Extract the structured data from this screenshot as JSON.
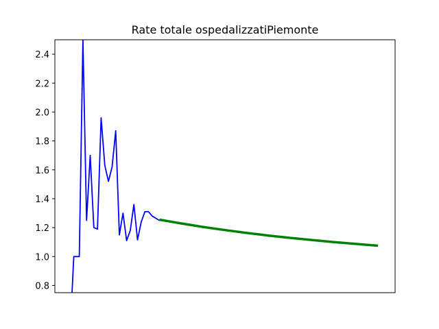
{
  "chart_data": {
    "type": "line",
    "title": "Rate totale ospedalizzatiPiemonte",
    "xlabel": "",
    "ylabel": "",
    "ylim": [
      0.75,
      2.5
    ],
    "yticks": [
      "0.8",
      "1.0",
      "1.2",
      "1.4",
      "1.6",
      "1.8",
      "2.0",
      "2.2",
      "2.4"
    ],
    "grid": false,
    "series": [
      {
        "color": "#0000ff",
        "x": [
          0,
          0.5,
          1,
          2,
          3,
          4,
          5,
          6,
          7,
          8,
          9,
          10,
          11,
          12,
          13,
          14,
          15,
          16,
          17,
          18,
          19,
          20,
          21,
          22,
          23,
          24,
          25
        ],
        "values": [
          0.75,
          1.0,
          1.0,
          1.0,
          2.5,
          1.25,
          1.7,
          1.2,
          1.19,
          1.96,
          1.63,
          1.52,
          1.62,
          1.87,
          1.15,
          1.3,
          1.11,
          1.18,
          1.36,
          1.115,
          1.24,
          1.31,
          1.31,
          1.28,
          1.265,
          1.25,
          1.25
        ]
      },
      {
        "color": "#008000",
        "x": [
          24,
          30,
          36,
          42,
          48,
          54,
          60,
          66,
          72,
          78,
          84
        ],
        "values": [
          1.255,
          1.229,
          1.205,
          1.183,
          1.163,
          1.145,
          1.129,
          1.114,
          1.1,
          1.087,
          1.075
        ]
      }
    ]
  }
}
